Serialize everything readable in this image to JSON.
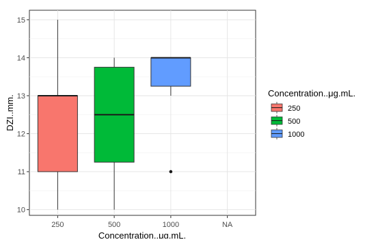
{
  "chart_data": {
    "type": "boxplot",
    "xlabel": "Concentration..μg.mL.",
    "ylabel": "DZI..mm.",
    "categories": [
      "250",
      "500",
      "1000",
      "NA"
    ],
    "ylim": [
      9.85,
      15.25
    ],
    "yticks": [
      10,
      11,
      12,
      13,
      14,
      15
    ],
    "grid": true,
    "boxes": [
      {
        "category": "250",
        "min": 10.0,
        "q1": 11.0,
        "median": 13.0,
        "q3": 13.0,
        "max": 15.0,
        "outliers": [],
        "color": "#F8766D"
      },
      {
        "category": "500",
        "min": 10.0,
        "q1": 11.25,
        "median": 12.5,
        "q3": 13.75,
        "max": 14.0,
        "outliers": [],
        "color": "#00BA38"
      },
      {
        "category": "1000",
        "min": 13.0,
        "q1": 13.25,
        "median": 14.0,
        "q3": 14.0,
        "max": 14.0,
        "outliers": [
          11.0
        ],
        "color": "#619CFF"
      }
    ],
    "legend": {
      "title": "Concentration..μg.mL.",
      "placement": "right",
      "items": [
        {
          "label": "250",
          "color": "#F8766D"
        },
        {
          "label": "500",
          "color": "#00BA38"
        },
        {
          "label": "1000",
          "color": "#619CFF"
        }
      ]
    }
  }
}
